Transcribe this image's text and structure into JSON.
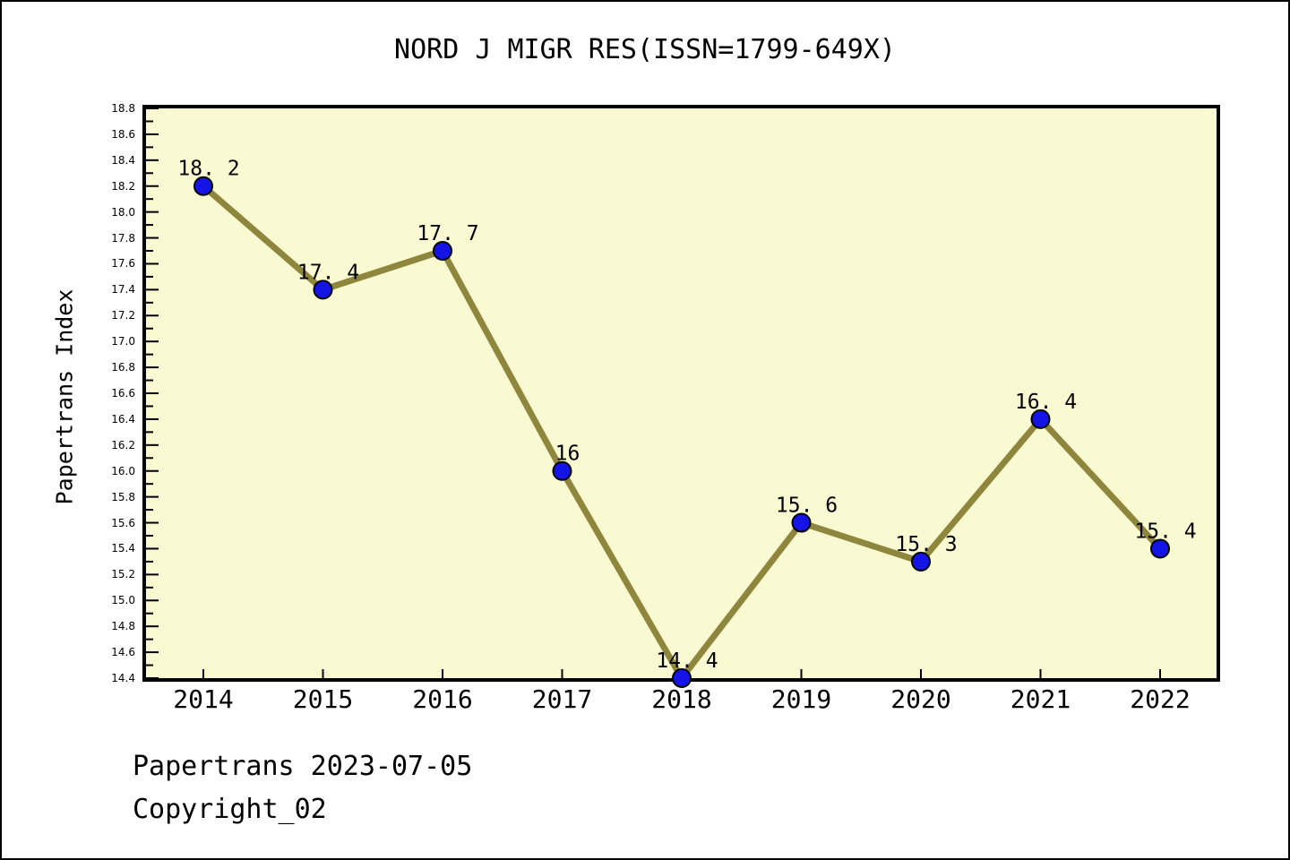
{
  "page": {
    "background": "#ffffff",
    "border_color": "#000000"
  },
  "footer": {
    "line1": "Papertrans 2023-07-05",
    "line2": "Copyright_02"
  },
  "colors": {
    "plot_background": "#FAFAD2",
    "line": "#8F863D",
    "marker_fill": "#1414E6",
    "marker_edge": "#000000",
    "axis": "#000000",
    "text": "#000000"
  },
  "chart_data": {
    "type": "line",
    "title": "NORD J MIGR RES(ISSN=1799-649X)",
    "ylabel": "Papertrans Index",
    "xlabel": "",
    "categories": [
      "2014",
      "2015",
      "2016",
      "2017",
      "2018",
      "2019",
      "2020",
      "2021",
      "2022"
    ],
    "values": [
      18.2,
      17.4,
      17.7,
      16,
      14.4,
      15.6,
      15.3,
      16.4,
      15.4
    ],
    "point_labels": [
      "18. 2",
      "17. 4",
      "17. 7",
      "16",
      "14. 4",
      "15. 6",
      "15. 3",
      "16. 4",
      "15. 4"
    ],
    "ylim": [
      14.4,
      18.8
    ],
    "ytick_step": 0.2,
    "y_minor_tick_step": 0.1,
    "ytick_labels": [
      "14.4",
      "14.6",
      "14.8",
      "15.0",
      "15.2",
      "15.4",
      "15.6",
      "15.8",
      "16.0",
      "16.2",
      "16.4",
      "16.6",
      "16.8",
      "17.0",
      "17.2",
      "17.4",
      "17.6",
      "17.8",
      "18.0",
      "18.2",
      "18.4",
      "18.6",
      "18.8"
    ],
    "grid": false,
    "legend": false
  }
}
